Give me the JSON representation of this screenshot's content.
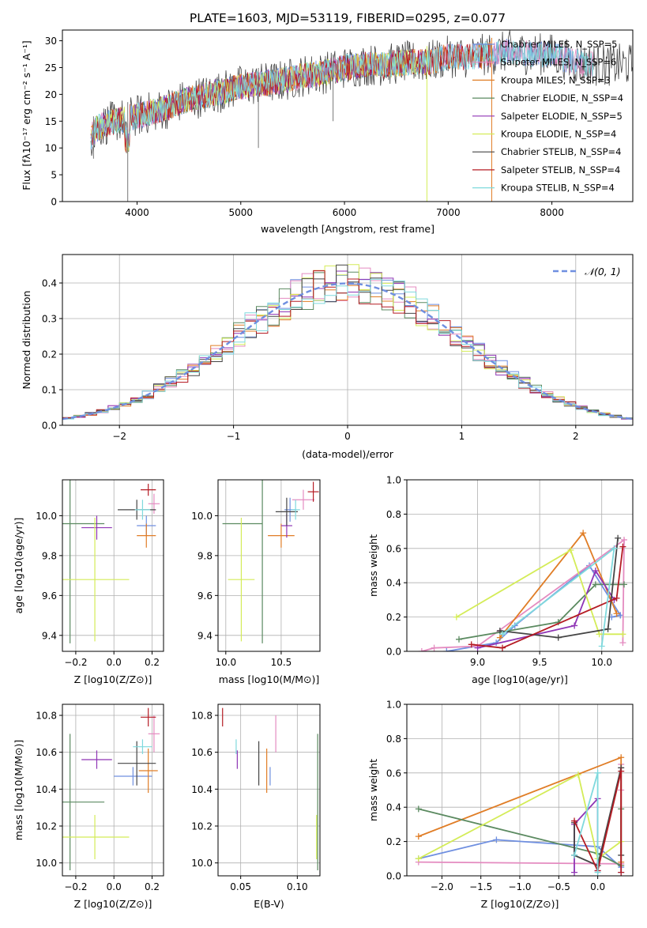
{
  "title": "PLATE=1603, MJD=53119, FIBERID=0295, z=0.077",
  "colors": {
    "chabrier_miles": "#6f8fe0",
    "salpeter_miles": "#e48bc0",
    "kroupa_miles": "#e07d26",
    "chabrier_elodie": "#5b8a60",
    "salpeter_elodie": "#8f35b5",
    "kroupa_elodie": "#d4ec58",
    "chabrier_stelib": "#454545",
    "salpeter_stelib": "#b51c24",
    "kroupa_stelib": "#7fd9dd",
    "normal_curve": "#6f8fe0"
  },
  "chart_data": [
    {
      "type": "line",
      "xlabel": "wavelength [Angstrom, rest frame]",
      "ylabel": "Flux [fλ10⁻¹⁷ erg cm⁻² s⁻¹ A⁻¹]",
      "xlim": [
        3280,
        8780
      ],
      "ylim": [
        0,
        32
      ],
      "x_ticks": [
        4000,
        5000,
        6000,
        7000,
        8000
      ],
      "y_ticks": [
        0,
        5,
        10,
        15,
        20,
        25,
        30
      ],
      "grid": false,
      "legend_position": "right",
      "spectrum_envelope": {
        "x": [
          3550,
          3600,
          3700,
          3800,
          3900,
          4000,
          4100,
          4200,
          4300,
          4400,
          4600,
          4800,
          5000,
          5200,
          5400,
          5600,
          5800,
          6000,
          6200,
          6400,
          6600,
          6800,
          7000,
          7200,
          7400,
          7600,
          7800,
          8000,
          8200,
          8400
        ],
        "y": [
          12,
          13.5,
          14.5,
          15,
          15.5,
          16,
          16.5,
          17,
          17.5,
          18.5,
          19.5,
          20.5,
          21.5,
          22,
          22.5,
          23.5,
          24,
          25,
          25.5,
          25.5,
          26,
          26,
          27,
          27,
          27.5,
          28,
          27.5,
          27.5,
          26,
          25.5
        ]
      },
      "series": [
        {
          "name": "Chabrier MILES, N_SSP=5",
          "color_key": "chabrier_miles",
          "end": 8300
        },
        {
          "name": "Salpeter MILES, N_SSP=6",
          "color_key": "salpeter_miles",
          "end": 8400
        },
        {
          "name": "Kroupa MILES, N_SSP=3",
          "color_key": "kroupa_miles",
          "end": 7420
        },
        {
          "name": "Chabrier ELODIE, N_SSP=4",
          "color_key": "chabrier_elodie",
          "end": 6790
        },
        {
          "name": "Salpeter ELODIE, N_SSP=5",
          "color_key": "salpeter_elodie",
          "end": 6790
        },
        {
          "name": "Kroupa ELODIE, N_SSP=4",
          "color_key": "kroupa_elodie",
          "end": 6790
        },
        {
          "name": "Chabrier STELIB, N_SSP=4",
          "color_key": "chabrier_stelib",
          "end": 8780
        },
        {
          "name": "Salpeter STELIB, N_SSP=4",
          "color_key": "salpeter_stelib",
          "end": 7420
        },
        {
          "name": "Kroupa STELIB, N_SSP=4",
          "color_key": "kroupa_stelib",
          "end": 8400
        }
      ]
    },
    {
      "type": "bar",
      "xlabel": "(data-model)/error",
      "ylabel": "Normed distribution",
      "xlim": [
        -2.5,
        2.5
      ],
      "ylim": [
        0,
        0.48
      ],
      "x_ticks": [
        -2,
        -1,
        0,
        1,
        2
      ],
      "x_tick_labels": [
        "−2",
        "−1",
        "0",
        "1",
        "2"
      ],
      "y_ticks": [
        0.0,
        0.1,
        0.2,
        0.3,
        0.4
      ],
      "y_tick_labels": [
        "0.0",
        "0.1",
        "0.2",
        "0.3",
        "0.4"
      ],
      "grid": true,
      "legend_position": "top-right",
      "curve_label": "𝒩(0, 1)",
      "curve": "standard normal pdf",
      "bin_edges_range": [
        -2.5,
        2.5
      ],
      "n_bins": 50,
      "series_note": "nine step histograms, one per model, approximately following N(0,1)"
    },
    {
      "type": "scatter",
      "xlabel": "Z [log10(Z/Z⊙)]",
      "ylabel": "age  [log10(age/yr)]",
      "xlim": [
        -0.27,
        0.26
      ],
      "ylim": [
        9.32,
        10.18
      ],
      "x_ticks": [
        -0.2,
        0.0,
        0.2
      ],
      "x_tick_labels": [
        "−0.2",
        "0.0",
        "0.2"
      ],
      "y_ticks": [
        9.4,
        9.6,
        9.8,
        10.0
      ],
      "y_tick_labels": [
        "9.4",
        "9.6",
        "9.8",
        "10.0"
      ],
      "grid": true,
      "points": [
        {
          "color_key": "chabrier_miles",
          "x": 0.17,
          "xerr": 0.05,
          "y": 9.95,
          "yerr": 0.05
        },
        {
          "color_key": "salpeter_miles",
          "x": 0.21,
          "xerr": 0.03,
          "y": 10.06,
          "yerr": 0.05
        },
        {
          "color_key": "kroupa_miles",
          "x": 0.17,
          "xerr": 0.05,
          "y": 9.9,
          "yerr": 0.06
        },
        {
          "color_key": "chabrier_elodie",
          "x": -0.23,
          "xerr": 0.18,
          "y": 9.96,
          "yerr": 0.6
        },
        {
          "color_key": "salpeter_elodie",
          "x": -0.09,
          "xerr": 0.08,
          "y": 9.94,
          "yerr": 0.06
        },
        {
          "color_key": "kroupa_elodie",
          "x": -0.1,
          "xerr": 0.18,
          "y": 9.68,
          "yerr": 0.31
        },
        {
          "color_key": "chabrier_stelib",
          "x": 0.12,
          "xerr": 0.1,
          "y": 10.03,
          "yerr": 0.05
        },
        {
          "color_key": "salpeter_stelib",
          "x": 0.18,
          "xerr": 0.04,
          "y": 10.13,
          "yerr": 0.03
        },
        {
          "color_key": "kroupa_stelib",
          "x": 0.15,
          "xerr": 0.04,
          "y": 10.03,
          "yerr": 0.05
        }
      ]
    },
    {
      "type": "scatter",
      "xlabel": "mass [log10(M/M⊙)]",
      "ylabel": "",
      "xlim": [
        9.93,
        10.85
      ],
      "ylim": [
        9.32,
        10.18
      ],
      "x_ticks": [
        10.0,
        10.5
      ],
      "x_tick_labels": [
        "10.0",
        "10.5"
      ],
      "y_ticks": [
        9.4,
        9.6,
        9.8,
        10.0
      ],
      "y_tick_labels": [
        "9.4",
        "9.6",
        "9.8",
        "10.0"
      ],
      "grid": true,
      "points": [
        {
          "color_key": "chabrier_miles",
          "x": 10.58,
          "xerr": 0.05,
          "y": 10.03,
          "yerr": 0.06
        },
        {
          "color_key": "salpeter_miles",
          "x": 10.7,
          "xerr": 0.1,
          "y": 10.08,
          "yerr": 0.05
        },
        {
          "color_key": "kroupa_miles",
          "x": 10.5,
          "xerr": 0.12,
          "y": 9.9,
          "yerr": 0.06
        },
        {
          "color_key": "chabrier_elodie",
          "x": 10.33,
          "xerr": 0.0,
          "y": 9.96,
          "yerr": 0.6,
          "xspan": [
            9.97,
            10.33
          ]
        },
        {
          "color_key": "salpeter_elodie",
          "x": 10.55,
          "xerr": 0.05,
          "y": 9.95,
          "yerr": 0.06
        },
        {
          "color_key": "kroupa_elodie",
          "x": 10.14,
          "xerr": 0.12,
          "y": 9.68,
          "yerr": 0.31
        },
        {
          "color_key": "chabrier_stelib",
          "x": 10.55,
          "xerr": 0.1,
          "y": 10.02,
          "yerr": 0.07
        },
        {
          "color_key": "salpeter_stelib",
          "x": 10.79,
          "xerr": 0.05,
          "y": 10.12,
          "yerr": 0.05
        },
        {
          "color_key": "kroupa_stelib",
          "x": 10.63,
          "xerr": 0.04,
          "y": 10.03,
          "yerr": 0.05
        }
      ]
    },
    {
      "type": "line",
      "xlabel": "age  [log10(age/yr)]",
      "ylabel": "mass weight",
      "xlim": [
        8.43,
        10.25
      ],
      "ylim": [
        0,
        1.0
      ],
      "x_ticks": [
        9.0,
        9.5,
        10.0
      ],
      "x_tick_labels": [
        "9.0",
        "9.5",
        "10.0"
      ],
      "y_ticks": [
        0.0,
        0.2,
        0.4,
        0.6,
        0.8,
        1.0
      ],
      "y_tick_labels": [
        "0.0",
        "0.2",
        "0.4",
        "0.6",
        "0.8",
        "1.0"
      ],
      "grid": true,
      "series": [
        {
          "color_key": "chabrier_miles",
          "x": [
            8.75,
            9.15,
            9.3,
            9.9,
            10.15,
            10.08,
            10.15
          ],
          "y": [
            0.0,
            0.05,
            0.15,
            0.5,
            0.21,
            0.2,
            0.21
          ]
        },
        {
          "color_key": "salpeter_miles",
          "x": [
            8.55,
            8.65,
            9.0,
            10.18,
            10.17
          ],
          "y": [
            0.0,
            0.02,
            0.03,
            0.65,
            0.05
          ]
        },
        {
          "color_key": "kroupa_miles",
          "x": [
            9.18,
            9.85,
            10.12
          ],
          "y": [
            0.08,
            0.69,
            0.22
          ]
        },
        {
          "color_key": "chabrier_elodie",
          "x": [
            8.85,
            9.65,
            9.95,
            10.18
          ],
          "y": [
            0.07,
            0.17,
            0.39,
            0.39
          ]
        },
        {
          "color_key": "salpeter_elodie",
          "x": [
            9.0,
            9.78,
            9.95,
            10.1
          ],
          "y": [
            0.02,
            0.15,
            0.47,
            0.3
          ]
        },
        {
          "color_key": "kroupa_elodie",
          "x": [
            8.83,
            9.75,
            9.98,
            10.17
          ],
          "y": [
            0.2,
            0.59,
            0.1,
            0.1
          ]
        },
        {
          "color_key": "chabrier_stelib",
          "x": [
            9.18,
            9.65,
            10.05,
            10.13
          ],
          "y": [
            0.12,
            0.08,
            0.13,
            0.66
          ]
        },
        {
          "color_key": "salpeter_stelib",
          "x": [
            8.95,
            9.2,
            10.12,
            10.17
          ],
          "y": [
            0.04,
            0.02,
            0.31,
            0.61
          ]
        },
        {
          "color_key": "kroupa_stelib",
          "x": [
            9.2,
            10.1,
            10.0
          ],
          "y": [
            0.1,
            0.6,
            0.03
          ]
        }
      ]
    },
    {
      "type": "scatter",
      "xlabel": "Z [log10(Z/Z⊙)]",
      "ylabel": "mass [log10(M/M⊙)]",
      "xlim": [
        -0.27,
        0.26
      ],
      "ylim": [
        9.93,
        10.86
      ],
      "x_ticks": [
        -0.2,
        0.0,
        0.2
      ],
      "x_tick_labels": [
        "−0.2",
        "0.0",
        "0.2"
      ],
      "y_ticks": [
        10.0,
        10.2,
        10.4,
        10.6,
        10.8
      ],
      "y_tick_labels": [
        "10.0",
        "10.2",
        "10.4",
        "10.6",
        "10.8"
      ],
      "grid": true,
      "points": [
        {
          "color_key": "chabrier_miles",
          "x": 0.1,
          "xerr": 0.1,
          "y": 10.47,
          "yerr": 0.05
        },
        {
          "color_key": "salpeter_miles",
          "x": 0.21,
          "xerr": 0.03,
          "y": 10.7,
          "yerr": 0.1
        },
        {
          "color_key": "kroupa_miles",
          "x": 0.18,
          "xerr": 0.05,
          "y": 10.5,
          "yerr": 0.12
        },
        {
          "color_key": "chabrier_elodie",
          "x": -0.23,
          "xerr": 0.18,
          "y": 10.33,
          "yerr": 0.37
        },
        {
          "color_key": "salpeter_elodie",
          "x": -0.09,
          "xerr": 0.08,
          "y": 10.56,
          "yerr": 0.05
        },
        {
          "color_key": "kroupa_elodie",
          "x": -0.1,
          "xerr": 0.18,
          "y": 10.14,
          "yerr": 0.12
        },
        {
          "color_key": "chabrier_stelib",
          "x": 0.12,
          "xerr": 0.1,
          "y": 10.54,
          "yerr": 0.12
        },
        {
          "color_key": "salpeter_stelib",
          "x": 0.18,
          "xerr": 0.04,
          "y": 10.79,
          "yerr": 0.05
        },
        {
          "color_key": "kroupa_stelib",
          "x": 0.15,
          "xerr": 0.05,
          "y": 10.63,
          "yerr": 0.04
        }
      ]
    },
    {
      "type": "scatter",
      "xlabel": "E(B-V)",
      "ylabel": "",
      "xlim": [
        0.03,
        0.12
      ],
      "ylim": [
        9.93,
        10.86
      ],
      "x_ticks": [
        0.05,
        0.1
      ],
      "x_tick_labels": [
        "0.05",
        "0.10"
      ],
      "y_ticks": [
        10.0,
        10.2,
        10.4,
        10.6,
        10.8
      ],
      "y_tick_labels": [
        "10.0",
        "10.2",
        "10.4",
        "10.6",
        "10.8"
      ],
      "grid": true,
      "points": [
        {
          "color_key": "chabrier_miles",
          "x": 0.076,
          "y": 10.47,
          "yerr": 0.05
        },
        {
          "color_key": "salpeter_miles",
          "x": 0.081,
          "y": 10.7,
          "yerr": 0.1
        },
        {
          "color_key": "kroupa_miles",
          "x": 0.073,
          "y": 10.5,
          "yerr": 0.12
        },
        {
          "color_key": "chabrier_elodie",
          "x": 0.118,
          "y": 10.33,
          "yerr": 0.37
        },
        {
          "color_key": "salpeter_elodie",
          "x": 0.047,
          "y": 10.56,
          "yerr": 0.05
        },
        {
          "color_key": "kroupa_elodie",
          "x": 0.117,
          "y": 10.14,
          "yerr": 0.12
        },
        {
          "color_key": "chabrier_stelib",
          "x": 0.066,
          "y": 10.54,
          "yerr": 0.12
        },
        {
          "color_key": "salpeter_stelib",
          "x": 0.034,
          "y": 10.79,
          "yerr": 0.05
        },
        {
          "color_key": "kroupa_stelib",
          "x": 0.046,
          "y": 10.63,
          "yerr": 0.04
        }
      ]
    },
    {
      "type": "line",
      "xlabel": "Z [log10(Z/Z⊙)]",
      "ylabel": "mass weight",
      "xlim": [
        -2.45,
        0.45
      ],
      "ylim": [
        0,
        1.0
      ],
      "x_ticks": [
        -2.0,
        -1.5,
        -1.0,
        -0.5,
        0.0
      ],
      "x_tick_labels": [
        "−2.0",
        "−1.5",
        "−1.0",
        "−0.5",
        "0.0"
      ],
      "y_ticks": [
        0.0,
        0.2,
        0.4,
        0.6,
        0.8,
        1.0
      ],
      "y_tick_labels": [
        "0.0",
        "0.2",
        "0.4",
        "0.6",
        "0.8",
        "1.0"
      ],
      "grid": true,
      "series": [
        {
          "color_key": "chabrier_miles",
          "x": [
            -2.3,
            -1.3,
            0.0,
            0.3,
            0.3
          ],
          "y": [
            0.1,
            0.21,
            0.17,
            0.05,
            0.02
          ]
        },
        {
          "color_key": "salpeter_miles",
          "x": [
            -2.3,
            0.3,
            0.3,
            0.3
          ],
          "y": [
            0.08,
            0.07,
            0.65,
            0.5
          ]
        },
        {
          "color_key": "kroupa_miles",
          "x": [
            -2.3,
            0.3,
            0.3
          ],
          "y": [
            0.23,
            0.69,
            0.08
          ]
        },
        {
          "color_key": "chabrier_elodie",
          "x": [
            -2.3,
            0.0,
            0.3,
            0.3
          ],
          "y": [
            0.39,
            0.13,
            0.06,
            0.39
          ]
        },
        {
          "color_key": "salpeter_elodie",
          "x": [
            -0.3,
            -0.3,
            0.0,
            0.0
          ],
          "y": [
            0.02,
            0.3,
            0.45,
            0.03
          ]
        },
        {
          "color_key": "kroupa_elodie",
          "x": [
            -2.3,
            -0.25,
            0.0,
            0.3
          ],
          "y": [
            0.1,
            0.59,
            0.1,
            0.2
          ]
        },
        {
          "color_key": "chabrier_stelib",
          "x": [
            -0.3,
            -0.3,
            0.0,
            0.3,
            0.3
          ],
          "y": [
            0.31,
            0.12,
            0.06,
            0.63,
            0.12
          ]
        },
        {
          "color_key": "salpeter_stelib",
          "x": [
            -0.3,
            0.0,
            0.3,
            0.3
          ],
          "y": [
            0.32,
            0.03,
            0.61,
            0.02
          ]
        },
        {
          "color_key": "kroupa_stelib",
          "x": [
            -0.3,
            0.0,
            0.0
          ],
          "y": [
            0.12,
            0.6,
            0.02
          ]
        }
      ]
    }
  ]
}
